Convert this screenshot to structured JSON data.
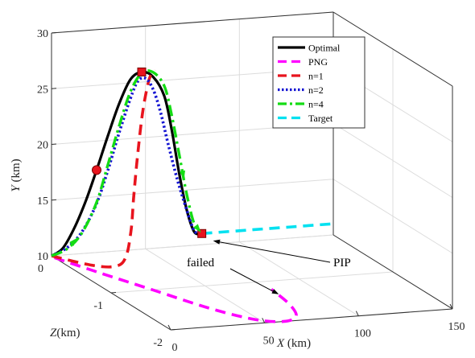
{
  "chart_data": {
    "type": "line",
    "projection": "3d",
    "xlabel": "X",
    "xunit": "(km)",
    "ylabel": "Y",
    "yunit": "(km)",
    "zlabel": "Z",
    "zunit": "(km)",
    "xlim": [
      0,
      150
    ],
    "ylim": [
      10,
      30
    ],
    "zlim": [
      -2,
      0
    ],
    "xticks": [
      "0",
      "50",
      "100",
      "150"
    ],
    "yticks": [
      "10",
      "15",
      "20",
      "25",
      "30"
    ],
    "zticks": [
      "0",
      "-1",
      "-2"
    ],
    "grid": true,
    "legend_position": "top-right",
    "series": [
      {
        "name": "Optimal",
        "color": "#000000",
        "style": "solid",
        "points": [
          [
            0,
            10,
            0
          ],
          [
            6,
            10.6,
            0
          ],
          [
            12,
            12.3,
            0
          ],
          [
            18,
            14.6,
            0
          ],
          [
            24,
            17.4,
            0
          ],
          [
            30,
            20.4,
            0
          ],
          [
            36,
            23.2,
            0
          ],
          [
            42,
            25.3,
            0
          ],
          [
            48,
            25.9,
            0
          ],
          [
            54,
            25.4,
            0
          ],
          [
            60,
            23.6,
            0
          ],
          [
            64,
            20.5,
            0
          ],
          [
            68,
            16.5,
            0
          ],
          [
            72,
            13.2,
            0
          ],
          [
            76,
            11.2,
            0
          ],
          [
            80,
            11,
            0
          ]
        ]
      },
      {
        "name": "PNG",
        "color": "#ff00ff",
        "style": "dashed",
        "points": [
          [
            0,
            10,
            -0.05
          ],
          [
            10,
            10,
            -0.5
          ],
          [
            22,
            10,
            -1.0
          ],
          [
            35,
            10,
            -1.55
          ],
          [
            48,
            10,
            -1.9
          ],
          [
            60,
            10,
            -2.0
          ],
          [
            70,
            10,
            -1.9
          ],
          [
            76,
            10,
            -1.6
          ],
          [
            79,
            10,
            -1.2
          ]
        ]
      },
      {
        "name": "n=1",
        "color": "#e8141e",
        "style": "dashed",
        "points": [
          [
            0,
            10,
            0
          ],
          [
            12,
            10,
            -0.3
          ],
          [
            22,
            10.05,
            -0.38
          ],
          [
            30,
            10.5,
            -0.3
          ],
          [
            36,
            12.5,
            -0.2
          ],
          [
            40,
            15.3,
            -0.12
          ],
          [
            44,
            18.8,
            -0.06
          ],
          [
            48,
            22.5,
            -0.02
          ],
          [
            52,
            25.2,
            0
          ],
          [
            55,
            26,
            0
          ]
        ]
      },
      {
        "name": "n=2",
        "color": "#1414d2",
        "style": "dotted",
        "points": [
          [
            0,
            10,
            0
          ],
          [
            8,
            10.6,
            0
          ],
          [
            16,
            11.9,
            0
          ],
          [
            24,
            14.4,
            0
          ],
          [
            30,
            17.3,
            0
          ],
          [
            36,
            20.6,
            0
          ],
          [
            42,
            23.6,
            0
          ],
          [
            46,
            25.1,
            0
          ],
          [
            50,
            25.3,
            0
          ],
          [
            54,
            24.3,
            0
          ],
          [
            58,
            22.2,
            0
          ],
          [
            62,
            19.3,
            0
          ],
          [
            67,
            16,
            0
          ],
          [
            72,
            13.2,
            0
          ],
          [
            76,
            11.3,
            0
          ],
          [
            80,
            11,
            0
          ]
        ]
      },
      {
        "name": "n=4",
        "color": "#14dc14",
        "style": "dashdot",
        "points": [
          [
            0,
            10,
            0
          ],
          [
            8,
            10.5,
            0
          ],
          [
            16,
            11.8,
            0
          ],
          [
            24,
            14.5,
            0
          ],
          [
            30,
            17.8,
            0
          ],
          [
            36,
            21.2,
            0
          ],
          [
            42,
            24.2,
            0
          ],
          [
            48,
            25.8,
            0
          ],
          [
            54,
            25.8,
            0
          ],
          [
            60,
            24.5,
            0
          ],
          [
            64,
            21.8,
            0
          ],
          [
            68,
            18.2,
            0
          ],
          [
            72,
            14.6,
            0
          ],
          [
            76,
            11.9,
            0
          ],
          [
            80,
            11,
            0
          ]
        ]
      },
      {
        "name": "Target",
        "color": "#00e1f0",
        "style": "dashed",
        "points": [
          [
            80,
            11,
            0
          ],
          [
            104,
            11,
            0
          ],
          [
            128,
            11,
            0
          ],
          [
            150,
            11,
            0
          ]
        ]
      }
    ],
    "markers": [
      {
        "series": "Optimal",
        "points": [
          [
            24,
            17.4,
            0
          ],
          [
            48,
            25.9,
            0
          ],
          [
            80,
            11,
            0
          ]
        ]
      }
    ],
    "annotations": [
      {
        "text": "failed",
        "arrow_to": [
          76,
          10,
          -1.5
        ]
      },
      {
        "text": "PIP",
        "arrow_to": [
          80,
          11,
          0
        ]
      }
    ]
  }
}
